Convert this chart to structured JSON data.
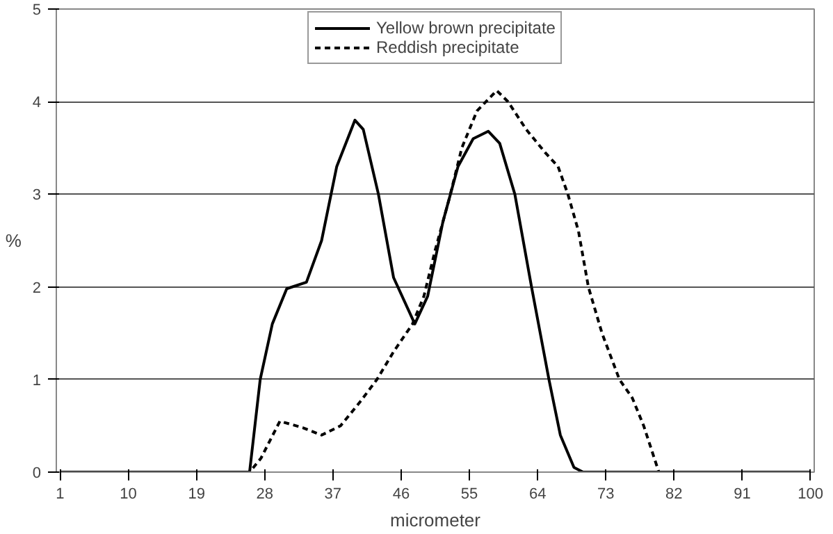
{
  "chart_data": {
    "type": "line",
    "xlabel": "micrometer",
    "ylabel": "%",
    "xlim": [
      0.5,
      100.5
    ],
    "xticks": [
      1,
      10,
      19,
      28,
      37,
      46,
      55,
      64,
      73,
      82,
      91,
      100
    ],
    "ylim": [
      0,
      5
    ],
    "yticks": [
      0,
      1,
      2,
      3,
      4,
      5
    ],
    "grid": "y",
    "legend": "top",
    "series": [
      {
        "name": "Yellow brown precipitate",
        "color": "#000000",
        "line_style": "solid",
        "x": [
          1,
          26,
          27.4,
          29,
          30.9,
          33.5,
          35.5,
          37.5,
          39.9,
          41,
          43,
          45,
          47.8,
          49.5,
          51.5,
          53.5,
          55.5,
          57.5,
          59,
          61,
          63.2,
          65.5,
          67,
          68.8,
          70,
          100
        ],
        "values": [
          0,
          0,
          1.0,
          1.6,
          1.98,
          2.05,
          2.5,
          3.3,
          3.8,
          3.7,
          3.0,
          2.1,
          1.6,
          1.9,
          2.7,
          3.3,
          3.6,
          3.68,
          3.55,
          3.0,
          2.0,
          1.0,
          0.4,
          0.05,
          0,
          0
        ]
      },
      {
        "name": "Reddish precipitate",
        "color": "#000000",
        "line_style": "dashed",
        "x": [
          1,
          26,
          27.5,
          30,
          33,
          35.5,
          38,
          40.5,
          42.8,
          45,
          47.5,
          49,
          50.5,
          52.4,
          54,
          56,
          58.6,
          60.1,
          62.5,
          65,
          66.7,
          68,
          69.4,
          70.7,
          72.5,
          74.8,
          76.5,
          78,
          80,
          100
        ],
        "values": [
          0,
          0,
          0.15,
          0.55,
          0.48,
          0.4,
          0.5,
          0.75,
          1.0,
          1.3,
          1.6,
          1.9,
          2.4,
          2.97,
          3.5,
          3.9,
          4.12,
          4.0,
          3.7,
          3.45,
          3.3,
          3.0,
          2.6,
          2.0,
          1.5,
          1.0,
          0.8,
          0.5,
          0,
          0
        ]
      }
    ]
  }
}
